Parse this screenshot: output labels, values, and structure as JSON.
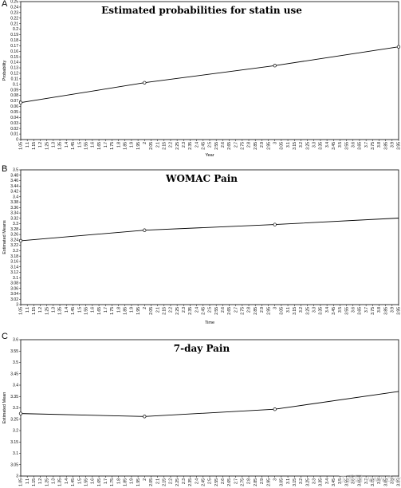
{
  "chart_data": [
    {
      "type": "line",
      "panel_letter": "A",
      "title": "Estimated probabilities for statin use",
      "xlabel": "Year",
      "ylabel": "Probability",
      "xlim": [
        1.05,
        3.95
      ],
      "ylim": [
        0,
        0.25
      ],
      "x_ticks": [
        "1.05",
        "1.1",
        "1.15",
        "1.2",
        "1.25",
        "1.3",
        "1.35",
        "1.4",
        "1.45",
        "1.5",
        "1.55",
        "1.6",
        "1.65",
        "1.7",
        "1.75",
        "1.8",
        "1.85",
        "1.9",
        "1.95",
        "2",
        "2.05",
        "2.1",
        "2.15",
        "2.2",
        "2.25",
        "2.3",
        "2.35",
        "2.4",
        "2.45",
        "2.5",
        "2.55",
        "2.6",
        "2.65",
        "2.7",
        "2.75",
        "2.8",
        "2.85",
        "2.9",
        "2.95",
        "3",
        "3.05",
        "3.1",
        "3.15",
        "3.2",
        "3.25",
        "3.3",
        "3.35",
        "3.4",
        "3.45",
        "3.5",
        "3.55",
        "3.6",
        "3.65",
        "3.7",
        "3.75",
        "3.8",
        "3.85",
        "3.9",
        "3.95"
      ],
      "y_ticks": [
        "0",
        "0.01",
        "0.02",
        "0.03",
        "0.04",
        "0.05",
        "0.06",
        "0.07",
        "0.08",
        "0.09",
        "0.1",
        "0.11",
        "0.12",
        "0.13",
        "0.14",
        "0.15",
        "0.16",
        "0.17",
        "0.18",
        "0.19",
        "0.2",
        "0.21",
        "0.22",
        "0.23",
        "0.24",
        "0.25"
      ],
      "x": [
        1.05,
        2,
        3,
        3.95
      ],
      "y": [
        0.067,
        0.103,
        0.134,
        0.168
      ],
      "markers": [
        true,
        true,
        true,
        true
      ]
    },
    {
      "type": "line",
      "panel_letter": "B",
      "title": "WOMAC Pain",
      "xlabel": "Time",
      "ylabel": "Estimated Means",
      "xlim": [
        1.05,
        3.95
      ],
      "ylim": [
        3,
        3.5
      ],
      "x_ticks": [
        "1.05",
        "1.1",
        "1.15",
        "1.2",
        "1.25",
        "1.3",
        "1.35",
        "1.4",
        "1.45",
        "1.5",
        "1.55",
        "1.6",
        "1.65",
        "1.7",
        "1.75",
        "1.8",
        "1.85",
        "1.9",
        "1.95",
        "2",
        "2.05",
        "2.1",
        "2.15",
        "2.2",
        "2.25",
        "2.3",
        "2.35",
        "2.4",
        "2.45",
        "2.5",
        "2.55",
        "2.6",
        "2.65",
        "2.7",
        "2.75",
        "2.8",
        "2.85",
        "2.9",
        "2.95",
        "3",
        "3.05",
        "3.1",
        "3.15",
        "3.2",
        "3.25",
        "3.3",
        "3.35",
        "3.4",
        "3.45",
        "3.5",
        "3.55",
        "3.6",
        "3.65",
        "3.7",
        "3.75",
        "3.8",
        "3.85",
        "3.9",
        "3.95"
      ],
      "y_ticks": [
        "3",
        "3.02",
        "3.04",
        "3.06",
        "3.08",
        "3.1",
        "3.12",
        "3.14",
        "3.16",
        "3.18",
        "3.2",
        "3.22",
        "3.24",
        "3.26",
        "3.28",
        "3.3",
        "3.32",
        "3.34",
        "3.36",
        "3.38",
        "3.4",
        "3.42",
        "3.44",
        "3.46",
        "3.48",
        "3.5"
      ],
      "x": [
        1.05,
        2,
        3,
        3.95
      ],
      "y": [
        3.237,
        3.276,
        3.297,
        3.321
      ],
      "markers": [
        true,
        true,
        true,
        false
      ]
    },
    {
      "type": "line",
      "panel_letter": "C",
      "title": "7-day Pain",
      "xlabel": "",
      "ylabel": "Estimated Mean",
      "xlim": [
        1.05,
        3.95
      ],
      "ylim": [
        3,
        3.6
      ],
      "x_ticks": [
        "1.05",
        "1.1",
        "1.15",
        "1.2",
        "1.25",
        "1.3",
        "1.35",
        "1.4",
        "1.45",
        "1.5",
        "1.55",
        "1.6",
        "1.65",
        "1.7",
        "1.75",
        "1.8",
        "1.85",
        "1.9",
        "1.95",
        "2",
        "2.05",
        "2.1",
        "2.15",
        "2.2",
        "2.25",
        "2.3",
        "2.35",
        "2.4",
        "2.45",
        "2.5",
        "2.55",
        "2.6",
        "2.65",
        "2.7",
        "2.75",
        "2.8",
        "2.85",
        "2.9",
        "2.95",
        "3",
        "3.05",
        "3.1",
        "3.15",
        "3.2",
        "3.25",
        "3.3",
        "3.35",
        "3.4",
        "3.45",
        "3.5",
        "3.55",
        "3.6",
        "3.65",
        "3.7",
        "3.75",
        "3.8",
        "3.85",
        "3.9",
        "3.95"
      ],
      "y_ticks": [
        "3",
        "3.05",
        "3.1",
        "3.15",
        "3.2",
        "3.25",
        "3.3",
        "3.35",
        "3.4",
        "3.45",
        "3.5",
        "3.55",
        "3.6"
      ],
      "x": [
        1.05,
        2,
        3,
        3.95
      ],
      "y": [
        3.275,
        3.262,
        3.294,
        3.372
      ],
      "markers": [
        true,
        true,
        true,
        false
      ]
    }
  ],
  "watermark": "丁香园 www.dxy.cn"
}
